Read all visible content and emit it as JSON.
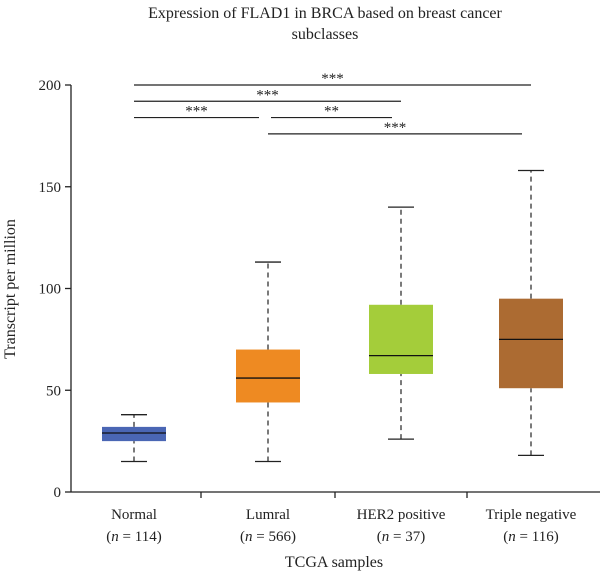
{
  "chart_data": {
    "type": "box",
    "title_line1": "Expression of FLAD1 in BRCA based on breast cancer",
    "title_line2": "subclasses",
    "xlabel": "TCGA samples",
    "ylabel": "Transcript per million",
    "ylim": [
      0,
      200
    ],
    "yticks": [
      0,
      50,
      100,
      150,
      200
    ],
    "grid": false,
    "legend": "none",
    "groups": [
      {
        "label": "Normal",
        "n_label": "(n = 114)",
        "min": 15,
        "q1": 25,
        "median": 29,
        "q3": 32,
        "max": 38,
        "color": "#4a66b4"
      },
      {
        "label": "Lumral",
        "n_label": "(n = 566)",
        "min": 15,
        "q1": 44,
        "median": 56,
        "q3": 70,
        "max": 113,
        "color": "#ee8a22"
      },
      {
        "label": "HER2 positive",
        "n_label": "(n = 37)",
        "min": 26,
        "q1": 58,
        "median": 67,
        "q3": 92,
        "max": 140,
        "color": "#a4cd3a"
      },
      {
        "label": "Triple negative",
        "n_label": "(n = 116)",
        "min": 18,
        "q1": 51,
        "median": 75,
        "q3": 95,
        "max": 158,
        "color": "#ac6b32"
      }
    ],
    "significance": [
      {
        "from": 0,
        "to": 3,
        "y": 200,
        "label": "***"
      },
      {
        "from": 0,
        "to": 2,
        "y": 192,
        "label": "***"
      },
      {
        "from": 0,
        "to": 1,
        "y": 184,
        "label": "***"
      },
      {
        "from": 1,
        "to": 2,
        "y": 184,
        "label": "**"
      },
      {
        "from": 1,
        "to": 3,
        "y": 176,
        "label": "***"
      }
    ]
  }
}
